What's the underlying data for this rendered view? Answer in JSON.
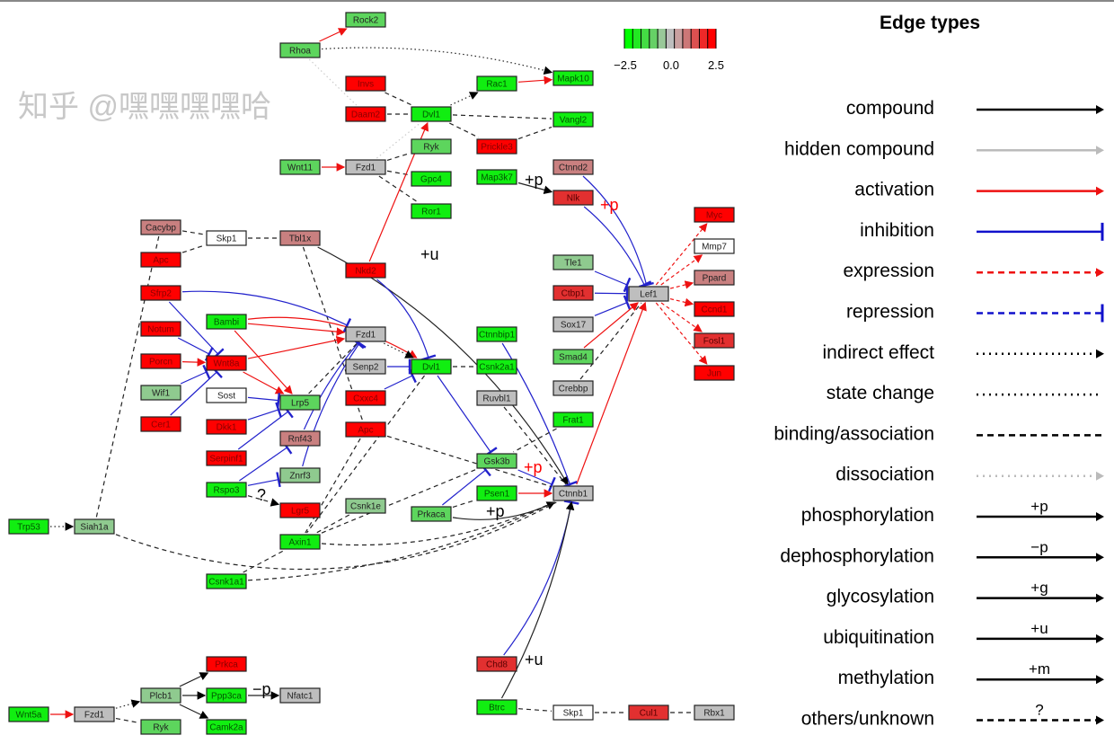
{
  "color_scale": {
    "min_label": "−2.5",
    "mid_label": "0.0",
    "max_label": "2.5",
    "colors": [
      "#00ff00",
      "#22e822",
      "#44dd44",
      "#66d066",
      "#99c899",
      "#bebebe",
      "#c9a0a0",
      "#cc7777",
      "#dd5050",
      "#ee2828",
      "#ff0000"
    ]
  },
  "fill_colors": {
    "g": "#11ee11",
    "mg": "#5dd55d",
    "lg": "#8fca8f",
    "gr": "#bebebe",
    "w": "#ffffff",
    "pk": "#c98080",
    "rr": "#e23030",
    "r": "#ff0000"
  },
  "nodes": [
    {
      "id": "Rock2",
      "label": "Rock2",
      "fill": "mg"
    },
    {
      "id": "Rhoa",
      "label": "Rhoa",
      "fill": "mg"
    },
    {
      "id": "Invs",
      "label": "Invs",
      "fill": "r"
    },
    {
      "id": "Daam2",
      "label": "Daam2",
      "fill": "r"
    },
    {
      "id": "Dvl1a",
      "label": "Dvl1",
      "fill": "g"
    },
    {
      "id": "Rac1",
      "label": "Rac1",
      "fill": "g"
    },
    {
      "id": "Mapk10",
      "label": "Mapk10",
      "fill": "g"
    },
    {
      "id": "Vangl2",
      "label": "Vangl2",
      "fill": "g"
    },
    {
      "id": "Prickle3",
      "label": "Prickle3",
      "fill": "r"
    },
    {
      "id": "Ryka",
      "label": "Ryk",
      "fill": "mg"
    },
    {
      "id": "Wnt11",
      "label": "Wnt11",
      "fill": "mg"
    },
    {
      "id": "Fzd1a",
      "label": "Fzd1",
      "fill": "gr"
    },
    {
      "id": "Gpc4",
      "label": "Gpc4",
      "fill": "g"
    },
    {
      "id": "Map3k7",
      "label": "Map3k7",
      "fill": "g"
    },
    {
      "id": "Ctnnd2",
      "label": "Ctnnd2",
      "fill": "pk"
    },
    {
      "id": "Nlk",
      "label": "Nlk",
      "fill": "rr"
    },
    {
      "id": "Ror1",
      "label": "Ror1",
      "fill": "g"
    },
    {
      "id": "Cacybp",
      "label": "Cacybp",
      "fill": "pk"
    },
    {
      "id": "Skp1a",
      "label": "Skp1",
      "fill": "w"
    },
    {
      "id": "Tbl1x",
      "label": "Tbl1x",
      "fill": "pk"
    },
    {
      "id": "Apca",
      "label": "Apc",
      "fill": "r"
    },
    {
      "id": "Myc",
      "label": "Myc",
      "fill": "r"
    },
    {
      "id": "Mmp7",
      "label": "Mmp7",
      "fill": "w"
    },
    {
      "id": "Nkd2",
      "label": "Nkd2",
      "fill": "r"
    },
    {
      "id": "Tle1",
      "label": "Tle1",
      "fill": "lg"
    },
    {
      "id": "Ppard",
      "label": "Ppard",
      "fill": "pk"
    },
    {
      "id": "Sfrp2",
      "label": "Sfrp2",
      "fill": "r"
    },
    {
      "id": "Ctbp1",
      "label": "Ctbp1",
      "fill": "rr"
    },
    {
      "id": "Lef1",
      "label": "Lef1",
      "fill": "gr"
    },
    {
      "id": "Ccnd1",
      "label": "Ccnd1",
      "fill": "r"
    },
    {
      "id": "Bambi",
      "label": "Bambi",
      "fill": "g"
    },
    {
      "id": "Sox17",
      "label": "Sox17",
      "fill": "gr"
    },
    {
      "id": "Notum",
      "label": "Notum",
      "fill": "r"
    },
    {
      "id": "Fzd1b",
      "label": "Fzd1",
      "fill": "gr"
    },
    {
      "id": "Ctnnbip1",
      "label": "Ctnnbip1",
      "fill": "g"
    },
    {
      "id": "Fosl1",
      "label": "Fosl1",
      "fill": "rr"
    },
    {
      "id": "Porcn",
      "label": "Porcn",
      "fill": "r"
    },
    {
      "id": "Wnt8a",
      "label": "Wnt8a",
      "fill": "r"
    },
    {
      "id": "Senp2",
      "label": "Senp2",
      "fill": "gr"
    },
    {
      "id": "Dvl1b",
      "label": "Dvl1",
      "fill": "g"
    },
    {
      "id": "Csnk2a1",
      "label": "Csnk2a1",
      "fill": "g"
    },
    {
      "id": "Smad4",
      "label": "Smad4",
      "fill": "mg"
    },
    {
      "id": "Jun",
      "label": "Jun",
      "fill": "r"
    },
    {
      "id": "Wif1",
      "label": "Wif1",
      "fill": "lg"
    },
    {
      "id": "Sost",
      "label": "Sost",
      "fill": "w"
    },
    {
      "id": "Crebbp",
      "label": "Crebbp",
      "fill": "gr"
    },
    {
      "id": "Lrp5",
      "label": "Lrp5",
      "fill": "mg"
    },
    {
      "id": "Cxxc4",
      "label": "Cxxc4",
      "fill": "r"
    },
    {
      "id": "Ruvbl1",
      "label": "Ruvbl1",
      "fill": "gr"
    },
    {
      "id": "Cer1",
      "label": "Cer1",
      "fill": "r"
    },
    {
      "id": "Dkk1",
      "label": "Dkk1",
      "fill": "r"
    },
    {
      "id": "Apcb",
      "label": "Apc",
      "fill": "r"
    },
    {
      "id": "Frat1",
      "label": "Frat1",
      "fill": "g"
    },
    {
      "id": "Rnf43",
      "label": "Rnf43",
      "fill": "pk"
    },
    {
      "id": "Serpinf1",
      "label": "Serpinf1",
      "fill": "r"
    },
    {
      "id": "Gsk3b",
      "label": "Gsk3b",
      "fill": "mg"
    },
    {
      "id": "Znrf3",
      "label": "Znrf3",
      "fill": "lg"
    },
    {
      "id": "Rspo3",
      "label": "Rspo3",
      "fill": "g"
    },
    {
      "id": "Psen1",
      "label": "Psen1",
      "fill": "g"
    },
    {
      "id": "Ctnnb1",
      "label": "Ctnnb1",
      "fill": "gr"
    },
    {
      "id": "Csnk1e",
      "label": "Csnk1e",
      "fill": "lg"
    },
    {
      "id": "Lgr5",
      "label": "Lgr5",
      "fill": "r"
    },
    {
      "id": "Prkaca",
      "label": "Prkaca",
      "fill": "mg"
    },
    {
      "id": "Trp53",
      "label": "Trp53",
      "fill": "g"
    },
    {
      "id": "Siah1a",
      "label": "Siah1a",
      "fill": "lg"
    },
    {
      "id": "Axin1",
      "label": "Axin1",
      "fill": "g"
    },
    {
      "id": "Csnk1a1",
      "label": "Csnk1a1",
      "fill": "g"
    },
    {
      "id": "Chd8",
      "label": "Chd8",
      "fill": "rr"
    },
    {
      "id": "Prkca",
      "label": "Prkca",
      "fill": "r"
    },
    {
      "id": "Plcb1",
      "label": "Plcb1",
      "fill": "lg"
    },
    {
      "id": "Ppp3ca",
      "label": "Ppp3ca",
      "fill": "g"
    },
    {
      "id": "Nfatc1",
      "label": "Nfatc1",
      "fill": "gr"
    },
    {
      "id": "Wnt5a",
      "label": "Wnt5a",
      "fill": "g"
    },
    {
      "id": "Fzd1c",
      "label": "Fzd1",
      "fill": "gr"
    },
    {
      "id": "Btrc",
      "label": "Btrc",
      "fill": "g"
    },
    {
      "id": "Skp1b",
      "label": "Skp1",
      "fill": "w"
    },
    {
      "id": "Cul1",
      "label": "Cul1",
      "fill": "rr"
    },
    {
      "id": "Rbx1",
      "label": "Rbx1",
      "fill": "gr"
    },
    {
      "id": "Rykb",
      "label": "Ryk",
      "fill": "mg"
    },
    {
      "id": "Camk2a",
      "label": "Camk2a",
      "fill": "g"
    }
  ],
  "edges": [
    {
      "from": "Rhoa",
      "to": "Rock2",
      "type": "activation"
    },
    {
      "from": "Rhoa",
      "to": "Mapk10",
      "type": "indirect"
    },
    {
      "from": "Rhoa",
      "to": "Daam2",
      "type": "dissociation"
    },
    {
      "from": "Invs",
      "to": "Dvl1a",
      "type": "binding"
    },
    {
      "from": "Daam2",
      "to": "Dvl1a",
      "type": "binding"
    },
    {
      "from": "Dvl1a",
      "to": "Rac1",
      "type": "indirect"
    },
    {
      "from": "Rac1",
      "to": "Mapk10",
      "type": "activation"
    },
    {
      "from": "Dvl1a",
      "to": "Vangl2",
      "type": "binding"
    },
    {
      "from": "Dvl1a",
      "to": "Prickle3",
      "type": "binding"
    },
    {
      "from": "Prickle3",
      "to": "Vangl2",
      "type": "binding"
    },
    {
      "from": "Wnt11",
      "to": "Fzd1a",
      "type": "activation"
    },
    {
      "from": "Fzd1a",
      "to": "Ryka",
      "type": "binding"
    },
    {
      "from": "Fzd1a",
      "to": "Gpc4",
      "type": "binding"
    },
    {
      "from": "Fzd1a",
      "to": "Ror1",
      "type": "binding"
    },
    {
      "from": "Fzd1a",
      "to": "Dvl1a",
      "type": "dissociation"
    },
    {
      "from": "Nkd2",
      "to": "Dvl1a",
      "type": "activation"
    },
    {
      "from": "Map3k7",
      "to": "Nlk",
      "type": "compound"
    },
    {
      "from": "Ctnnd2",
      "to": "Lef1",
      "type": "inhibition"
    },
    {
      "from": "Nlk",
      "to": "Lef1",
      "type": "inhibition"
    },
    {
      "from": "Cacybp",
      "to": "Skp1a",
      "type": "binding"
    },
    {
      "from": "Apca",
      "to": "Skp1a",
      "type": "binding"
    },
    {
      "from": "Skp1a",
      "to": "Tbl1x",
      "type": "binding"
    },
    {
      "from": "Tbl1x",
      "to": "Ctnnb1",
      "type": "compound"
    },
    {
      "from": "Tbl1x",
      "to": "Apcb",
      "type": "binding"
    },
    {
      "from": "Cacybp",
      "to": "Siah1a",
      "type": "binding"
    },
    {
      "from": "Lef1",
      "to": "Myc",
      "type": "expression"
    },
    {
      "from": "Lef1",
      "to": "Mmp7",
      "type": "expression"
    },
    {
      "from": "Lef1",
      "to": "Ppard",
      "type": "expression"
    },
    {
      "from": "Lef1",
      "to": "Ccnd1",
      "type": "expression"
    },
    {
      "from": "Lef1",
      "to": "Fosl1",
      "type": "expression"
    },
    {
      "from": "Lef1",
      "to": "Jun",
      "type": "expression"
    },
    {
      "from": "Tle1",
      "to": "Lef1",
      "type": "inhibition"
    },
    {
      "from": "Ctbp1",
      "to": "Lef1",
      "type": "inhibition"
    },
    {
      "from": "Sox17",
      "to": "Lef1",
      "type": "inhibition"
    },
    {
      "from": "Smad4",
      "to": "Lef1",
      "type": "activation"
    },
    {
      "from": "Crebbp",
      "to": "Lef1",
      "type": "binding"
    },
    {
      "from": "Ctnnb1",
      "to": "Lef1",
      "type": "activation"
    },
    {
      "from": "Sfrp2",
      "to": "Fzd1b",
      "type": "inhibition"
    },
    {
      "from": "Sfrp2",
      "to": "Wnt8a",
      "type": "inhibition"
    },
    {
      "from": "Notum",
      "to": "Wnt8a",
      "type": "inhibition"
    },
    {
      "from": "Porcn",
      "to": "Wnt8a",
      "type": "activation"
    },
    {
      "from": "Wif1",
      "to": "Wnt8a",
      "type": "inhibition"
    },
    {
      "from": "Cer1",
      "to": "Wnt8a",
      "type": "inhibition"
    },
    {
      "from": "Bambi",
      "to": "Fzd1b",
      "type": "activation"
    },
    {
      "from": "Bambi",
      "to": "Dvl1b",
      "type": "activation"
    },
    {
      "from": "Bambi",
      "to": "Lrp5",
      "type": "activation"
    },
    {
      "from": "Wnt8a",
      "to": "Fzd1b",
      "type": "activation"
    },
    {
      "from": "Wnt8a",
      "to": "Lrp5",
      "type": "activation"
    },
    {
      "from": "Sost",
      "to": "Lrp5",
      "type": "inhibition"
    },
    {
      "from": "Dkk1",
      "to": "Lrp5",
      "type": "inhibition"
    },
    {
      "from": "Serpinf1",
      "to": "Lrp5",
      "type": "inhibition"
    },
    {
      "from": "Rspo3",
      "to": "Rnf43",
      "type": "inhibition"
    },
    {
      "from": "Rspo3",
      "to": "Znrf3",
      "type": "inhibition"
    },
    {
      "from": "Rspo3",
      "to": "Lgr5",
      "type": "others"
    },
    {
      "from": "Rnf43",
      "to": "Fzd1b",
      "type": "inhibition"
    },
    {
      "from": "Znrf3",
      "to": "Fzd1b",
      "type": "inhibition"
    },
    {
      "from": "Lrp5",
      "to": "Fzd1b",
      "type": "binding"
    },
    {
      "from": "Fzd1b",
      "to": "Dvl1b",
      "type": "indirect"
    },
    {
      "from": "Nkd2",
      "to": "Dvl1b",
      "type": "inhibition"
    },
    {
      "from": "Senp2",
      "to": "Dvl1b",
      "type": "inhibition"
    },
    {
      "from": "Cxxc4",
      "to": "Dvl1b",
      "type": "inhibition"
    },
    {
      "from": "Dvl1b",
      "to": "Csnk2a1",
      "type": "binding"
    },
    {
      "from": "Dvl1b",
      "to": "Gsk3b",
      "type": "inhibition"
    },
    {
      "from": "Dvl1b",
      "to": "Axin1",
      "type": "binding"
    },
    {
      "from": "Ctnnbip1",
      "to": "Ctnnb1",
      "type": "inhibition"
    },
    {
      "from": "Ruvbl1",
      "to": "Ctnnb1",
      "type": "binding"
    },
    {
      "from": "Frat1",
      "to": "Gsk3b",
      "type": "binding"
    },
    {
      "from": "Gsk3b",
      "to": "Ctnnb1",
      "type": "inhibition"
    },
    {
      "from": "Psen1",
      "to": "Ctnnb1",
      "type": "activation"
    },
    {
      "from": "Prkaca",
      "to": "Gsk3b",
      "type": "inhibition"
    },
    {
      "from": "Prkaca",
      "to": "Ctnnb1",
      "type": "compound"
    },
    {
      "from": "Prkaca",
      "to": "Psen1",
      "type": "binding"
    },
    {
      "from": "Apcb",
      "to": "Ctnnb1",
      "type": "binding"
    },
    {
      "from": "Apcb",
      "to": "Axin1",
      "type": "binding"
    },
    {
      "from": "Csnk1e",
      "to": "Axin1",
      "type": "binding"
    },
    {
      "from": "Axin1",
      "to": "Ctnnb1",
      "type": "binding"
    },
    {
      "from": "Axin1",
      "to": "Gsk3b",
      "type": "binding"
    },
    {
      "from": "Csnk1a1",
      "to": "Axin1",
      "type": "binding"
    },
    {
      "from": "Csnk1a1",
      "to": "Ctnnb1",
      "type": "binding"
    },
    {
      "from": "Siah1a",
      "to": "Ctnnb1",
      "type": "binding"
    },
    {
      "from": "Trp53",
      "to": "Siah1a",
      "type": "indirect"
    },
    {
      "from": "Chd8",
      "to": "Ctnnb1",
      "type": "inhibition"
    },
    {
      "from": "Btrc",
      "to": "Ctnnb1",
      "type": "compound"
    },
    {
      "from": "Btrc",
      "to": "Skp1b",
      "type": "binding"
    },
    {
      "from": "Skp1b",
      "to": "Cul1",
      "type": "binding"
    },
    {
      "from": "Cul1",
      "to": "Rbx1",
      "type": "binding"
    },
    {
      "from": "Wnt5a",
      "to": "Fzd1c",
      "type": "activation"
    },
    {
      "from": "Fzd1c",
      "to": "Plcb1",
      "type": "indirect"
    },
    {
      "from": "Fzd1c",
      "to": "Rykb",
      "type": "binding"
    },
    {
      "from": "Plcb1",
      "to": "Prkca",
      "type": "compound"
    },
    {
      "from": "Plcb1",
      "to": "Ppp3ca",
      "type": "compound"
    },
    {
      "from": "Plcb1",
      "to": "Camk2a",
      "type": "compound"
    },
    {
      "from": "Ppp3ca",
      "to": "Nfatc1",
      "type": "compound"
    }
  ],
  "edge_labels": [
    {
      "id": "map3k7-nlk",
      "text": "+p",
      "color": "#000000"
    },
    {
      "id": "nlk-lef1",
      "text": "+p",
      "color": "#ff0000"
    },
    {
      "id": "tbl1x-ctnnb1",
      "text": "+u",
      "color": "#000000"
    },
    {
      "id": "gsk3b-ctnnb1",
      "text": "+p",
      "color": "#ff0000"
    },
    {
      "id": "prkaca-ctnnb1",
      "text": "+p",
      "color": "#000000"
    },
    {
      "id": "rspo3-lgr5",
      "text": "?",
      "color": "#000000"
    },
    {
      "id": "ppp3ca-nfatc1",
      "text": "−p",
      "color": "#000000"
    },
    {
      "id": "btrc-ctnnb1",
      "text": "+u",
      "color": "#000000"
    }
  ],
  "legend": {
    "title": "Edge types",
    "items": [
      {
        "label": "compound",
        "type": "compound"
      },
      {
        "label": "hidden compound",
        "type": "hidden"
      },
      {
        "label": "activation",
        "type": "activation"
      },
      {
        "label": "inhibition",
        "type": "inhibition"
      },
      {
        "label": "expression",
        "type": "expression"
      },
      {
        "label": "repression",
        "type": "repression"
      },
      {
        "label": "indirect effect",
        "type": "indirect"
      },
      {
        "label": "state change",
        "type": "state"
      },
      {
        "label": "binding/association",
        "type": "binding"
      },
      {
        "label": "dissociation",
        "type": "dissociation"
      },
      {
        "label": "phosphorylation",
        "type": "mod",
        "mark": "+p"
      },
      {
        "label": "dephosphorylation",
        "type": "mod",
        "mark": "−p"
      },
      {
        "label": "glycosylation",
        "type": "mod",
        "mark": "+g"
      },
      {
        "label": "ubiquitination",
        "type": "mod",
        "mark": "+u"
      },
      {
        "label": "methylation",
        "type": "mod",
        "mark": "+m"
      },
      {
        "label": "others/unknown",
        "type": "others",
        "mark": "?"
      }
    ]
  },
  "watermark": "知乎 @嘿嘿嘿嘿哈"
}
